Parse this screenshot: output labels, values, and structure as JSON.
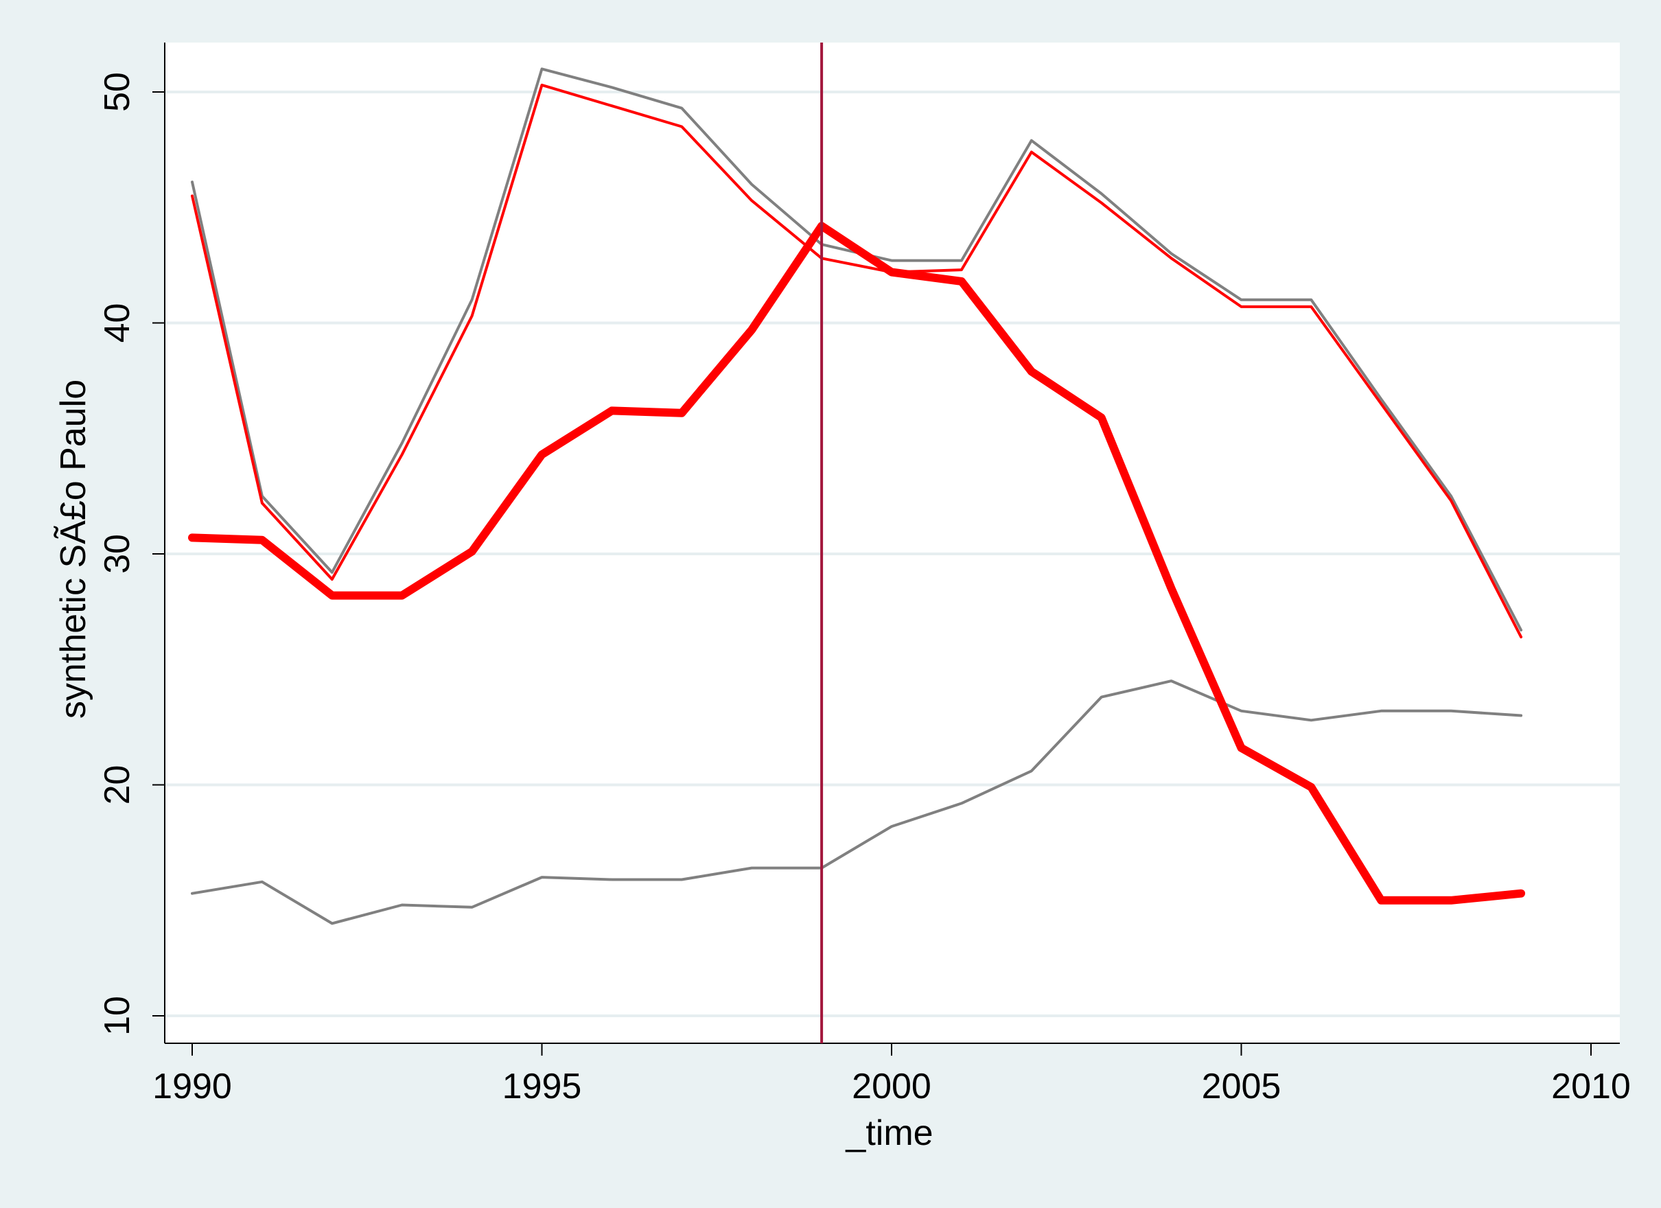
{
  "chart_data": {
    "type": "line",
    "title": "",
    "xlabel": "_time",
    "ylabel": "synthetic SÃ£o Paulo",
    "xlim": [
      1990,
      2010
    ],
    "ylim": [
      10,
      52
    ],
    "x_ticks": [
      1990,
      1995,
      2000,
      2005,
      2010
    ],
    "y_ticks": [
      10,
      20,
      30,
      40,
      50
    ],
    "x_tick_labels": [
      "1990",
      "1995",
      "2000",
      "2005",
      "2010"
    ],
    "y_tick_labels": [
      "10",
      "20",
      "30",
      "40",
      "50"
    ],
    "grid": true,
    "reference_line": {
      "x": 1999,
      "color": "#a3173c"
    },
    "x": [
      1990,
      1991,
      1992,
      1993,
      1994,
      1995,
      1996,
      1997,
      1998,
      1999,
      2000,
      2001,
      2002,
      2003,
      2004,
      2005,
      2006,
      2007,
      2008,
      2009
    ],
    "series": [
      {
        "color": "#808080",
        "width": "thin",
        "values": [
          46.1,
          32.5,
          29.2,
          34.8,
          41.0,
          51.0,
          50.2,
          49.3,
          46.0,
          43.4,
          42.7,
          42.7,
          47.9,
          45.6,
          43.0,
          41.0,
          41.0,
          36.7,
          32.5,
          26.7
        ]
      },
      {
        "color": "#ff0000",
        "width": "thin",
        "values": [
          45.5,
          32.2,
          28.9,
          34.3,
          40.3,
          50.3,
          49.4,
          48.5,
          45.3,
          42.8,
          42.2,
          42.3,
          47.4,
          45.2,
          42.8,
          40.7,
          40.7,
          36.5,
          32.3,
          26.4
        ]
      },
      {
        "color": "#808080",
        "width": "thin",
        "values": [
          15.3,
          15.8,
          14.0,
          14.8,
          14.7,
          16.0,
          15.9,
          15.9,
          16.4,
          16.4,
          18.2,
          19.2,
          20.6,
          23.8,
          24.5,
          23.2,
          22.8,
          23.2,
          23.2,
          23.0
        ]
      },
      {
        "color": "#ff0000",
        "width": "thick",
        "values": [
          30.7,
          30.6,
          28.2,
          28.2,
          30.1,
          34.3,
          36.2,
          36.1,
          39.7,
          44.2,
          42.2,
          41.8,
          37.9,
          35.9,
          28.5,
          21.6,
          19.9,
          15.0,
          15.0,
          15.3
        ]
      }
    ]
  }
}
